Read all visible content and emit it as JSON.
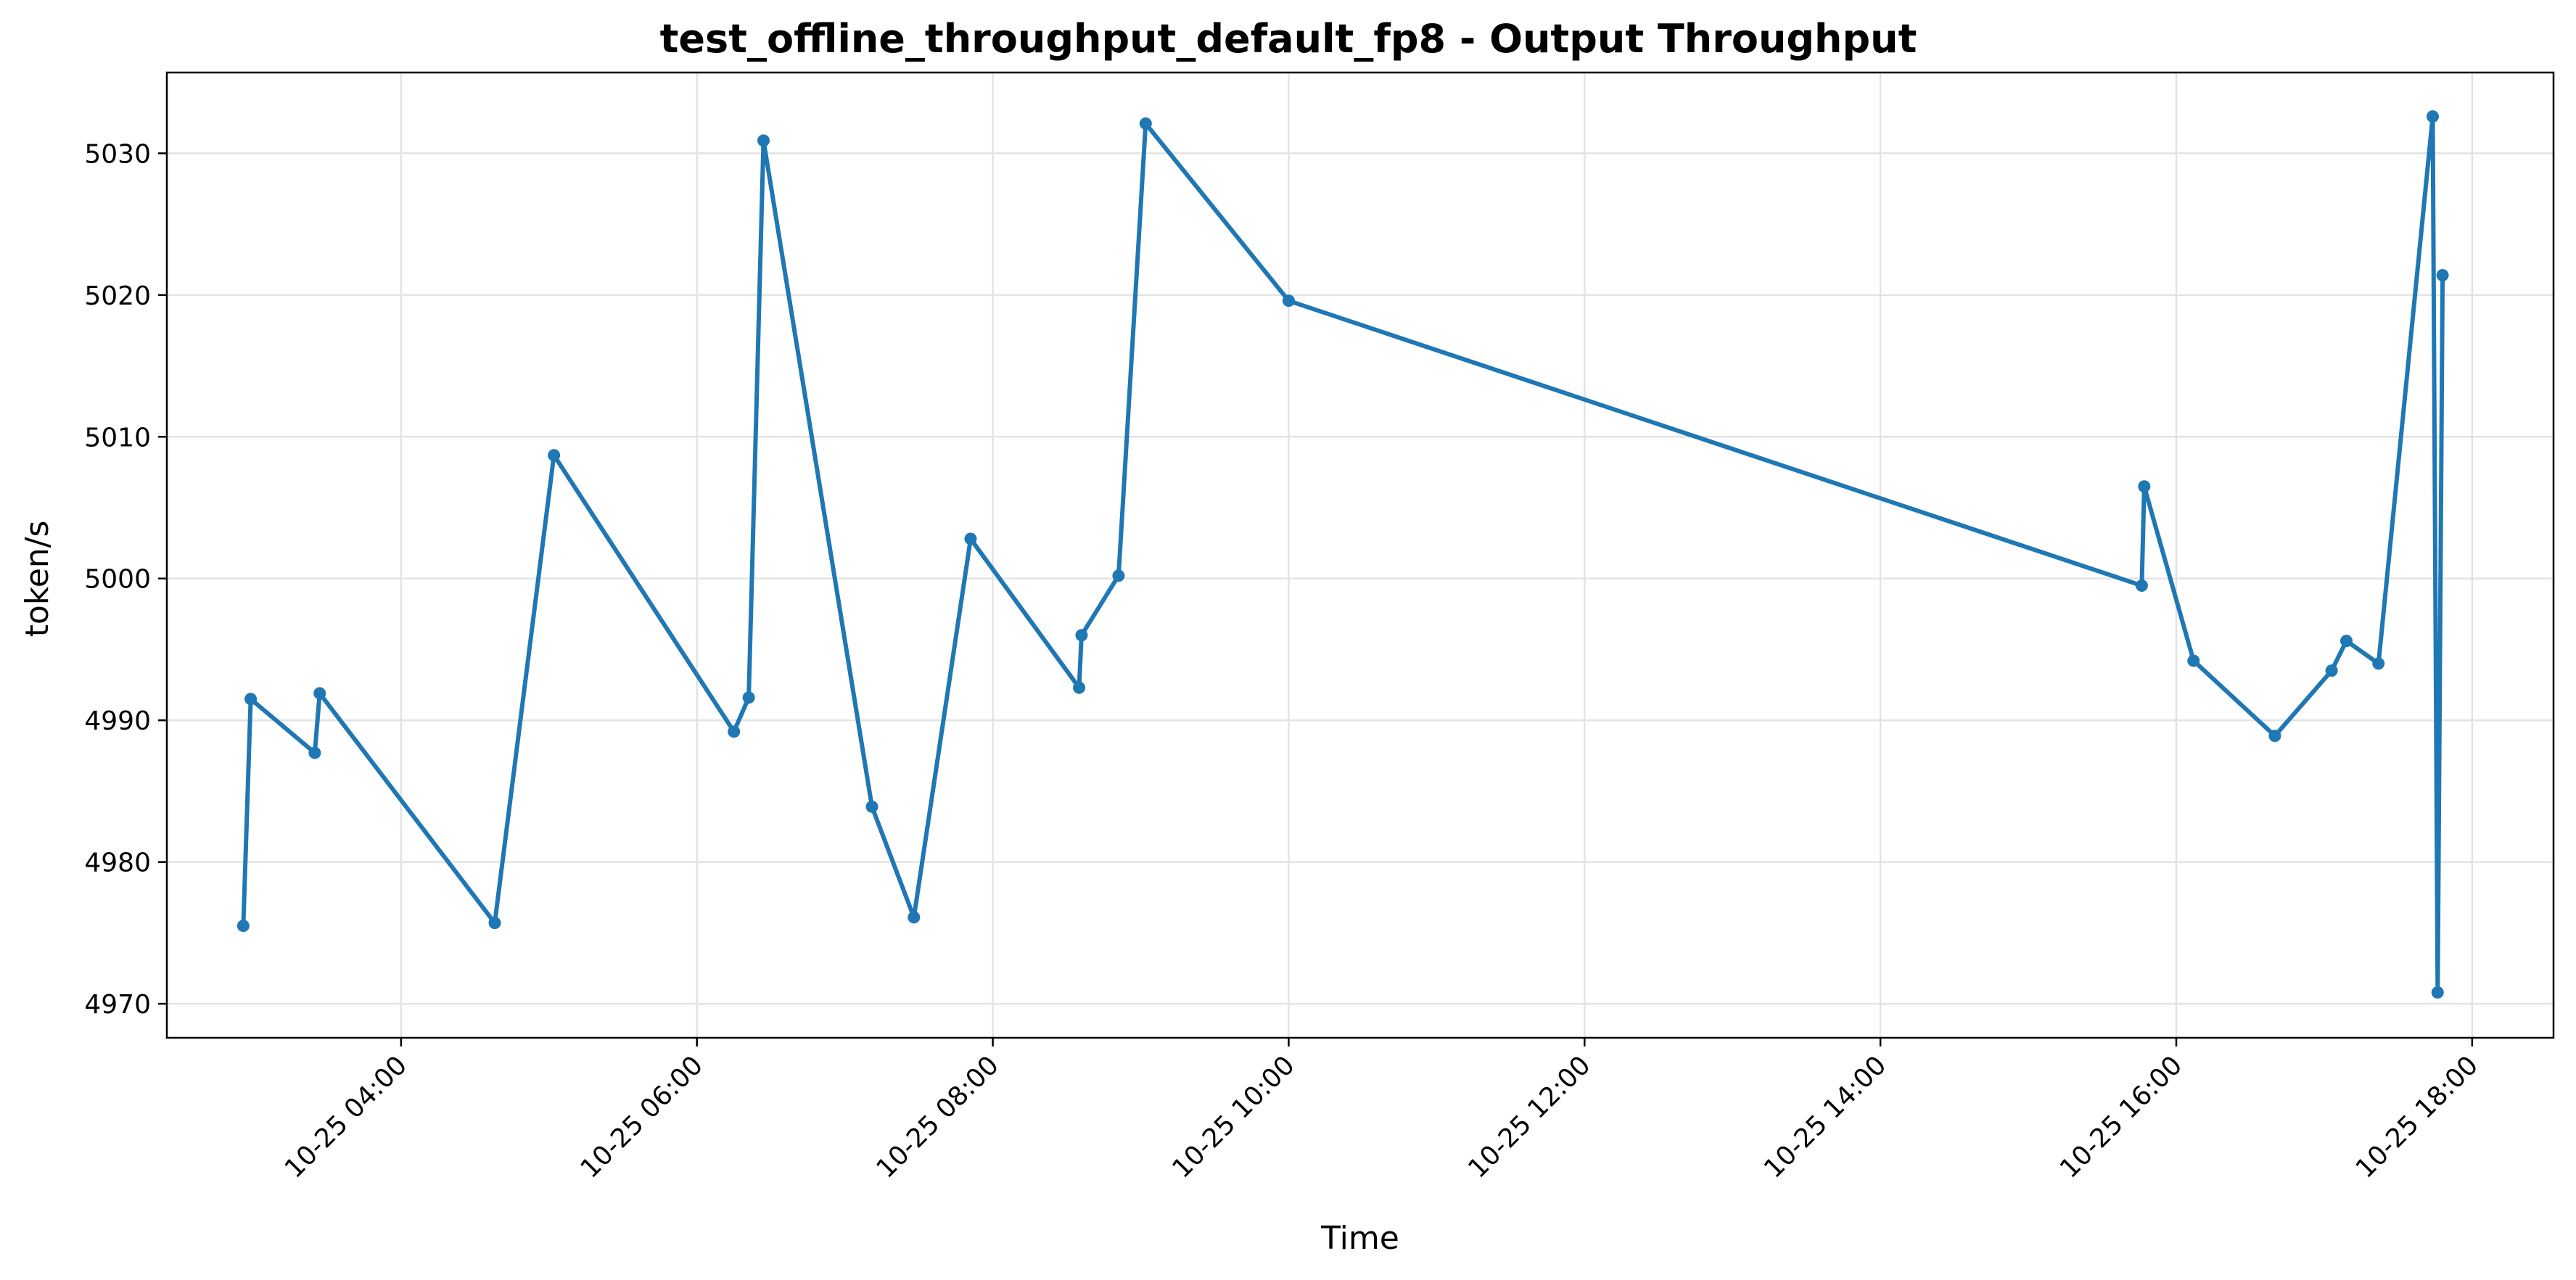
{
  "chart_data": {
    "type": "line",
    "title": "test_offline_throughput_default_fp8 - Output Throughput",
    "xlabel": "Time",
    "ylabel": "token/s",
    "grid": true,
    "color": "#1f77b4",
    "x_ticks": [
      "10-25 04:00",
      "10-25 06:00",
      "10-25 08:00",
      "10-25 10:00",
      "10-25 12:00",
      "10-25 14:00",
      "10-25 16:00",
      "10-25 18:00"
    ],
    "y_ticks": [
      "4970",
      "4980",
      "4990",
      "5000",
      "5010",
      "5020",
      "5030"
    ],
    "xlim": [
      "2024-10-25T02:25",
      "2024-10-25T18:33"
    ],
    "ylim": [
      4967.6,
      5035.7
    ],
    "series": [
      {
        "x": [
          "2024-10-25T02:56",
          "2024-10-25T02:59",
          "2024-10-25T03:25",
          "2024-10-25T03:27",
          "2024-10-25T04:38",
          "2024-10-25T05:02",
          "2024-10-25T06:15",
          "2024-10-25T06:21",
          "2024-10-25T06:27",
          "2024-10-25T07:11",
          "2024-10-25T07:28",
          "2024-10-25T07:51",
          "2024-10-25T08:35",
          "2024-10-25T08:36",
          "2024-10-25T08:51",
          "2024-10-25T09:02",
          "2024-10-25T10:00",
          "2024-10-25T15:46",
          "2024-10-25T15:47",
          "2024-10-25T16:07",
          "2024-10-25T16:40",
          "2024-10-25T17:03",
          "2024-10-25T17:09",
          "2024-10-25T17:22",
          "2024-10-25T17:44",
          "2024-10-25T17:46",
          "2024-10-25T17:48"
        ],
        "y": [
          4975.5,
          4991.5,
          4987.7,
          4991.9,
          4975.7,
          5008.7,
          4989.2,
          4991.6,
          5030.9,
          4983.9,
          4976.1,
          5002.8,
          4992.3,
          4996.0,
          5000.2,
          5032.1,
          5019.6,
          4999.5,
          5006.5,
          4994.2,
          4988.9,
          4993.5,
          4995.6,
          4994.0,
          5032.6,
          4970.8,
          5021.4
        ]
      }
    ]
  }
}
